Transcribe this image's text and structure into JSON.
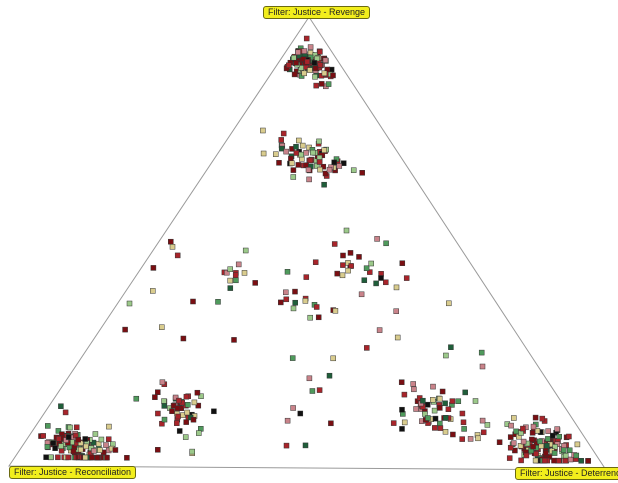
{
  "chart_data": {
    "type": "scatter",
    "subtype": "ternary",
    "vertices": {
      "top": "Filter: Justice - Revenge",
      "left": "Filter: Justice - Reconciliation",
      "right": "Filter: Justice - Deterrence"
    },
    "colors": {
      "dark_red": "#7a0e12",
      "red": "#a8242a",
      "pink": "#c9838a",
      "beige": "#d9cc8e",
      "light_green": "#9cc98a",
      "green": "#4f9a5c",
      "dark_green": "#1f5e3a",
      "black": "#111111"
    },
    "clusters": [
      {
        "revenge": 0.9,
        "reconciliation": 0.05,
        "deterrence": 0.05,
        "spread": 0.02,
        "count": 110
      },
      {
        "revenge": 0.69,
        "reconciliation": 0.15,
        "deterrence": 0.16,
        "spread": 0.025,
        "count": 70
      },
      {
        "revenge": 0.04,
        "reconciliation": 0.86,
        "deterrence": 0.1,
        "spread": 0.03,
        "count": 130
      },
      {
        "revenge": 0.13,
        "reconciliation": 0.65,
        "deterrence": 0.22,
        "spread": 0.03,
        "count": 50
      },
      {
        "revenge": 0.05,
        "reconciliation": 0.08,
        "deterrence": 0.87,
        "spread": 0.03,
        "count": 130
      },
      {
        "revenge": 0.13,
        "reconciliation": 0.22,
        "deterrence": 0.65,
        "spread": 0.03,
        "count": 60
      },
      {
        "revenge": 0.44,
        "reconciliation": 0.19,
        "deterrence": 0.37,
        "spread": 0.035,
        "count": 28
      },
      {
        "revenge": 0.36,
        "reconciliation": 0.32,
        "deterrence": 0.32,
        "spread": 0.02,
        "count": 14
      },
      {
        "revenge": 0.44,
        "reconciliation": 0.4,
        "deterrence": 0.16,
        "spread": 0.035,
        "count": 12
      },
      {
        "revenge": 0.1,
        "reconciliation": 0.48,
        "deterrence": 0.42,
        "spread": 0.035,
        "count": 6
      },
      {
        "revenge": 0.33,
        "reconciliation": 0.55,
        "deterrence": 0.12,
        "spread": 0.08,
        "count": 12
      },
      {
        "revenge": 0.3,
        "reconciliation": 0.18,
        "deterrence": 0.52,
        "spread": 0.08,
        "count": 12
      },
      {
        "revenge": 0.2,
        "reconciliation": 0.4,
        "deterrence": 0.4,
        "spread": 0.06,
        "count": 8
      }
    ]
  }
}
